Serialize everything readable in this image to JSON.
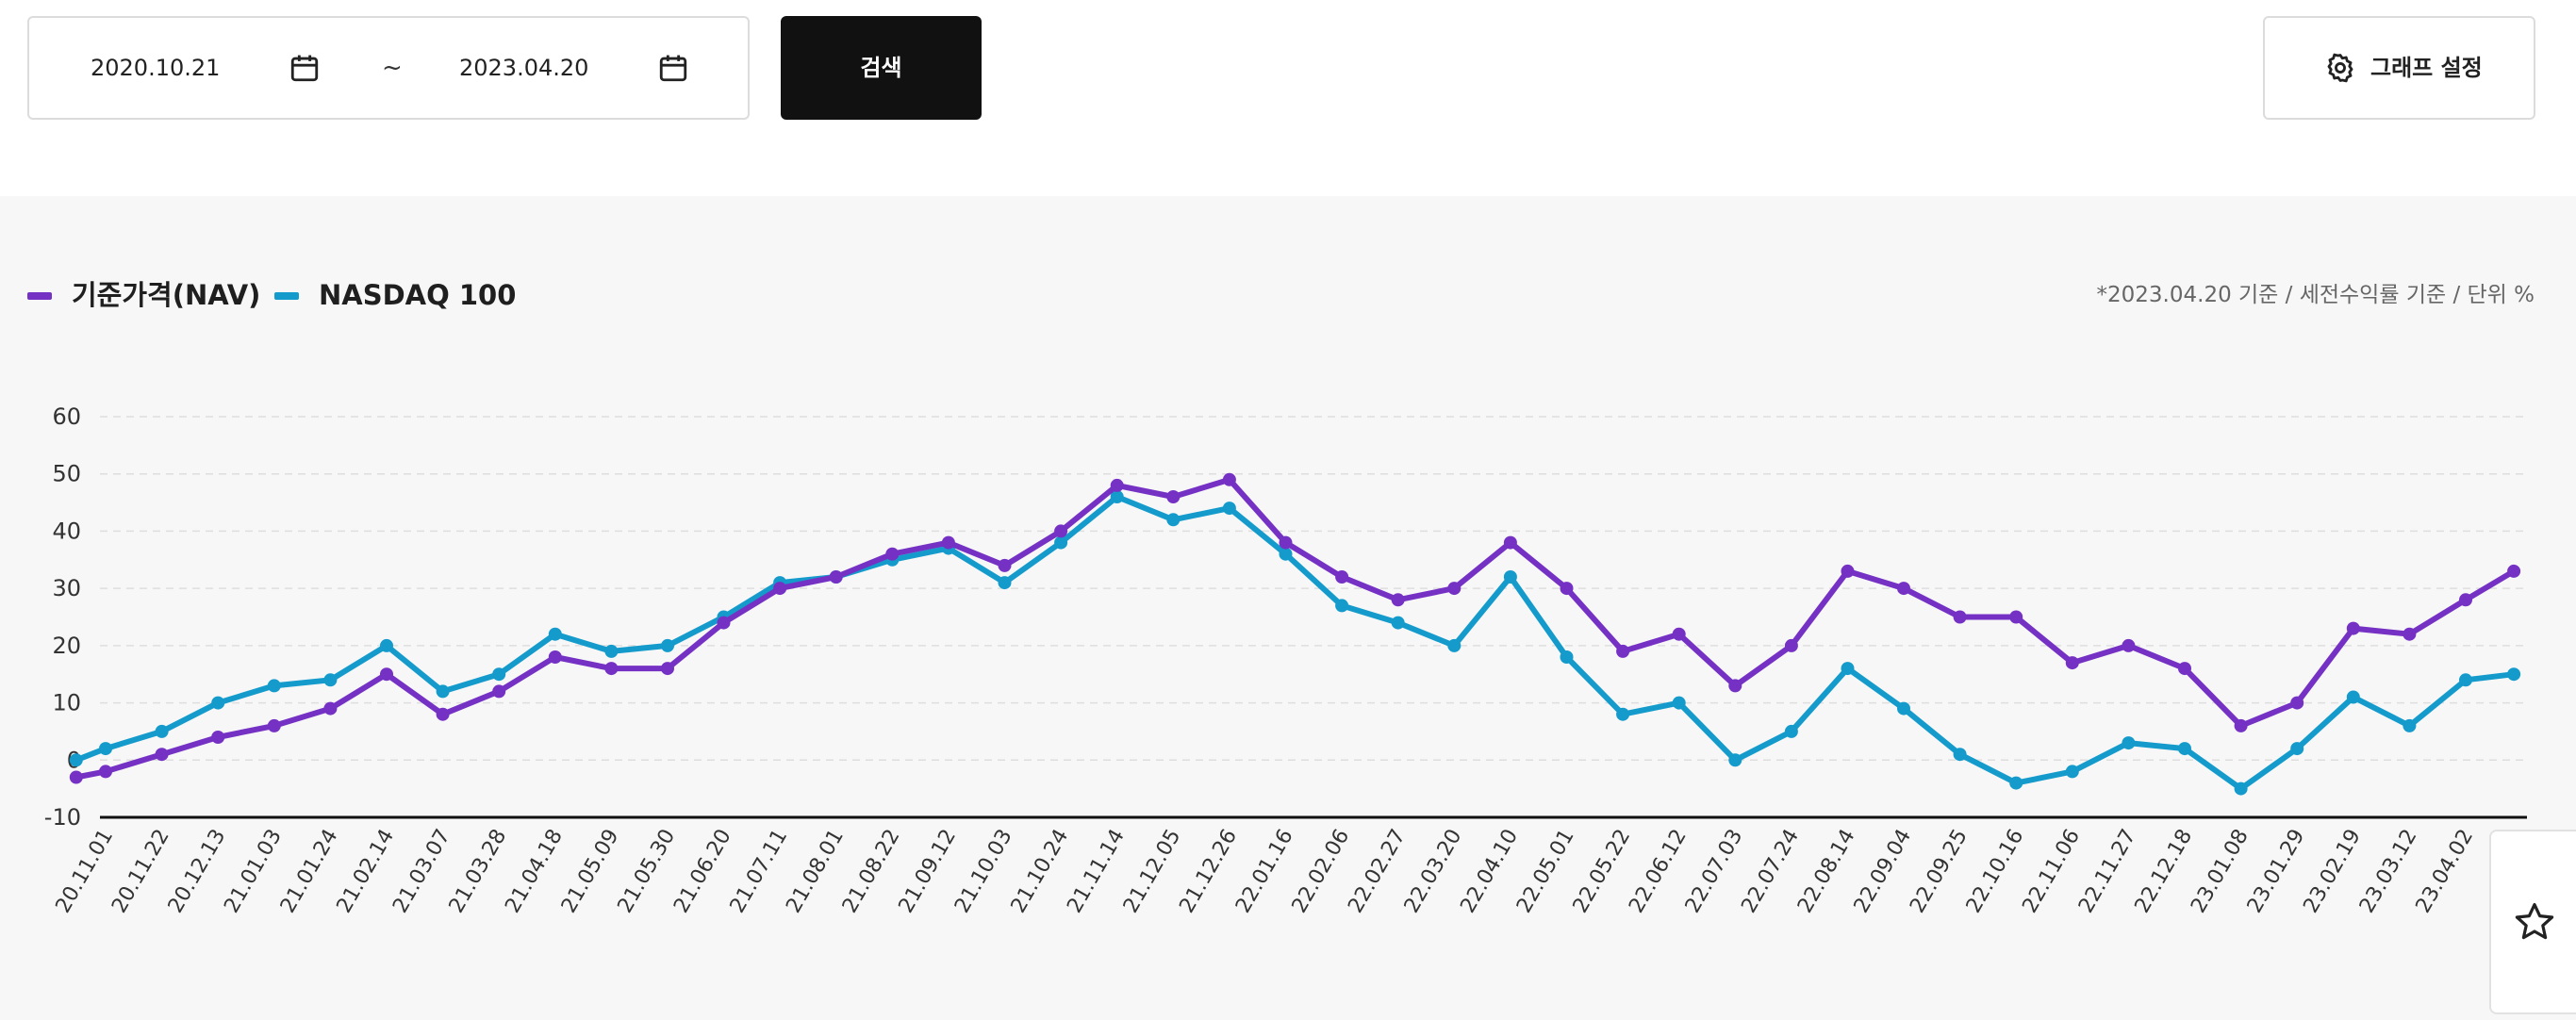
{
  "toolbar": {
    "start_date": "2020.10.21",
    "end_date": "2023.04.20",
    "separator": "~",
    "search_label": "검색",
    "settings_label": "그래프 설정",
    "icons": {
      "date_picker": "calendar-icon",
      "settings": "gear-icon"
    }
  },
  "legend": {
    "nav_label": "기준가격(NAV)",
    "nasdaq_label": "NASDAQ 100"
  },
  "note": "*2023.04.20 기준 / 세전수익률 기준 / 단위 %",
  "favorite": {
    "icon": "star-icon"
  },
  "colors": {
    "nav": "#7531c4",
    "nasdaq": "#149bcc",
    "search_bg": "#111111"
  },
  "chart_data": {
    "type": "line",
    "title": "",
    "xlabel": "",
    "ylabel": "",
    "ylim": [
      -10,
      60
    ],
    "yticks": [
      -10,
      0,
      10,
      20,
      30,
      40,
      50,
      60
    ],
    "grid": true,
    "legend_position": "top-left",
    "x_tick_labels": [
      "20.11.01",
      "20.11.22",
      "20.12.13",
      "21.01.03",
      "21.01.24",
      "21.02.14",
      "21.03.07",
      "21.03.28",
      "21.04.18",
      "21.05.09",
      "21.05.30",
      "21.06.20",
      "21.07.11",
      "21.08.01",
      "21.08.22",
      "21.09.12",
      "21.10.03",
      "21.10.24",
      "21.11.14",
      "21.12.05",
      "21.12.26",
      "22.01.16",
      "22.02.06",
      "22.02.27",
      "22.03.20",
      "22.04.10",
      "22.05.01",
      "22.05.22",
      "22.06.12",
      "22.07.03",
      "22.07.24",
      "22.08.14",
      "22.09.04",
      "22.09.25",
      "22.10.16",
      "22.11.06",
      "22.11.27",
      "22.12.18",
      "23.01.08",
      "23.01.29",
      "23.02.19",
      "23.03.12",
      "23.04.02"
    ],
    "x": [
      "20.10.21",
      "20.11.01",
      "20.11.22",
      "20.12.13",
      "21.01.03",
      "21.01.24",
      "21.02.14",
      "21.03.07",
      "21.03.28",
      "21.04.18",
      "21.05.09",
      "21.05.30",
      "21.06.20",
      "21.07.11",
      "21.08.01",
      "21.08.22",
      "21.09.12",
      "21.10.03",
      "21.10.24",
      "21.11.14",
      "21.12.05",
      "21.12.26",
      "22.01.16",
      "22.02.06",
      "22.02.27",
      "22.03.20",
      "22.04.10",
      "22.05.01",
      "22.05.22",
      "22.06.12",
      "22.07.03",
      "22.07.24",
      "22.08.14",
      "22.09.04",
      "22.09.25",
      "22.10.16",
      "22.11.06",
      "22.11.27",
      "22.12.18",
      "23.01.08",
      "23.01.29",
      "23.02.19",
      "23.03.12",
      "23.04.02",
      "23.04.20"
    ],
    "series": [
      {
        "name": "기준가격(NAV)",
        "values": [
          -3,
          -2,
          1,
          4,
          6,
          9,
          15,
          8,
          12,
          18,
          16,
          16,
          24,
          30,
          32,
          36,
          38,
          34,
          40,
          48,
          46,
          49,
          38,
          32,
          28,
          30,
          38,
          30,
          19,
          22,
          13,
          20,
          33,
          30,
          25,
          25,
          17,
          20,
          16,
          6,
          10,
          23,
          22,
          28,
          33
        ]
      },
      {
        "name": "NASDAQ 100",
        "values": [
          0,
          2,
          5,
          10,
          13,
          14,
          20,
          12,
          15,
          22,
          19,
          20,
          25,
          31,
          32,
          35,
          37,
          31,
          38,
          46,
          42,
          44,
          36,
          27,
          24,
          20,
          32,
          18,
          8,
          10,
          0,
          5,
          16,
          9,
          1,
          -4,
          -2,
          3,
          2,
          -5,
          2,
          11,
          6,
          14,
          15
        ]
      }
    ]
  }
}
